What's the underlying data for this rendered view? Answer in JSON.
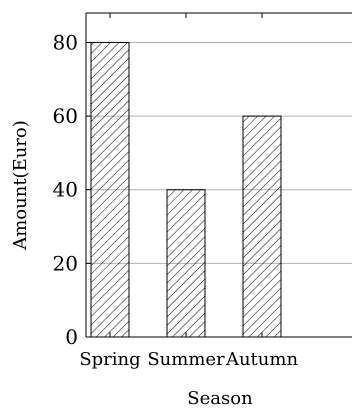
{
  "chart_data": {
    "type": "bar",
    "categories": [
      "Spring",
      "Summer",
      "Autumn"
    ],
    "values": [
      80,
      40,
      60
    ],
    "title": "",
    "xlabel": "Season",
    "ylabel": "Amount(Euro)",
    "ylim": [
      0,
      88
    ],
    "yticks": [
      0,
      20,
      40,
      60,
      80
    ],
    "grid": "horizontal",
    "bar_fill": "hatched",
    "colors": {
      "axis": "#000000",
      "grid": "#b3b3b3",
      "bar_stroke": "#000000",
      "hatch": "#000000",
      "background": "#ffffff"
    }
  }
}
